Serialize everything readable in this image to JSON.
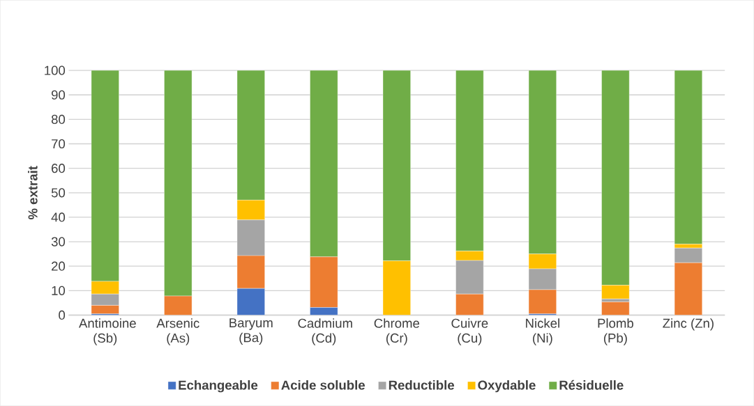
{
  "chart_data": {
    "type": "bar",
    "stacked": true,
    "ylabel": "**% extrait**",
    "categories": [
      "Antimoine (Sb)",
      "Arsenic (As)",
      "Baryum (Ba)",
      "Cadmium (Cd)",
      "Chrome (Cr)",
      "Cuivre (Cu)",
      "Nickel (Ni)",
      "Plomb (Pb)",
      "Zinc (Zn)"
    ],
    "series": [
      {
        "name": "Echangeable",
        "color": "#4472c4",
        "values": [
          0.5,
          0,
          10.9,
          3.1,
          0,
          0,
          0.5,
          0,
          0
        ]
      },
      {
        "name": "Acide soluble",
        "color": "#ed7d31",
        "values": [
          3.5,
          7.8,
          13.4,
          20.7,
          0,
          8.6,
          9.9,
          5.4,
          21.4
        ]
      },
      {
        "name": "Reductible",
        "color": "#a5a5a5",
        "values": [
          4.6,
          0,
          14.6,
          0,
          0,
          13.7,
          8.5,
          1.2,
          6.0
        ]
      },
      {
        "name": "Oxydable",
        "color": "#ffc000",
        "values": [
          5.2,
          0,
          8.1,
          0,
          22.2,
          3.9,
          6.1,
          5.6,
          1.6
        ]
      },
      {
        "name": "Résiduelle",
        "color": "#70ad47",
        "values": [
          86.2,
          92.2,
          53.0,
          76.2,
          77.8,
          73.8,
          75.0,
          87.8,
          71.0
        ]
      }
    ],
    "ylim": [
      0,
      100
    ],
    "yticks": [
      0,
      10,
      20,
      30,
      40,
      50,
      60,
      70,
      80,
      90,
      100
    ],
    "grid": "y",
    "legend": "bottom"
  }
}
